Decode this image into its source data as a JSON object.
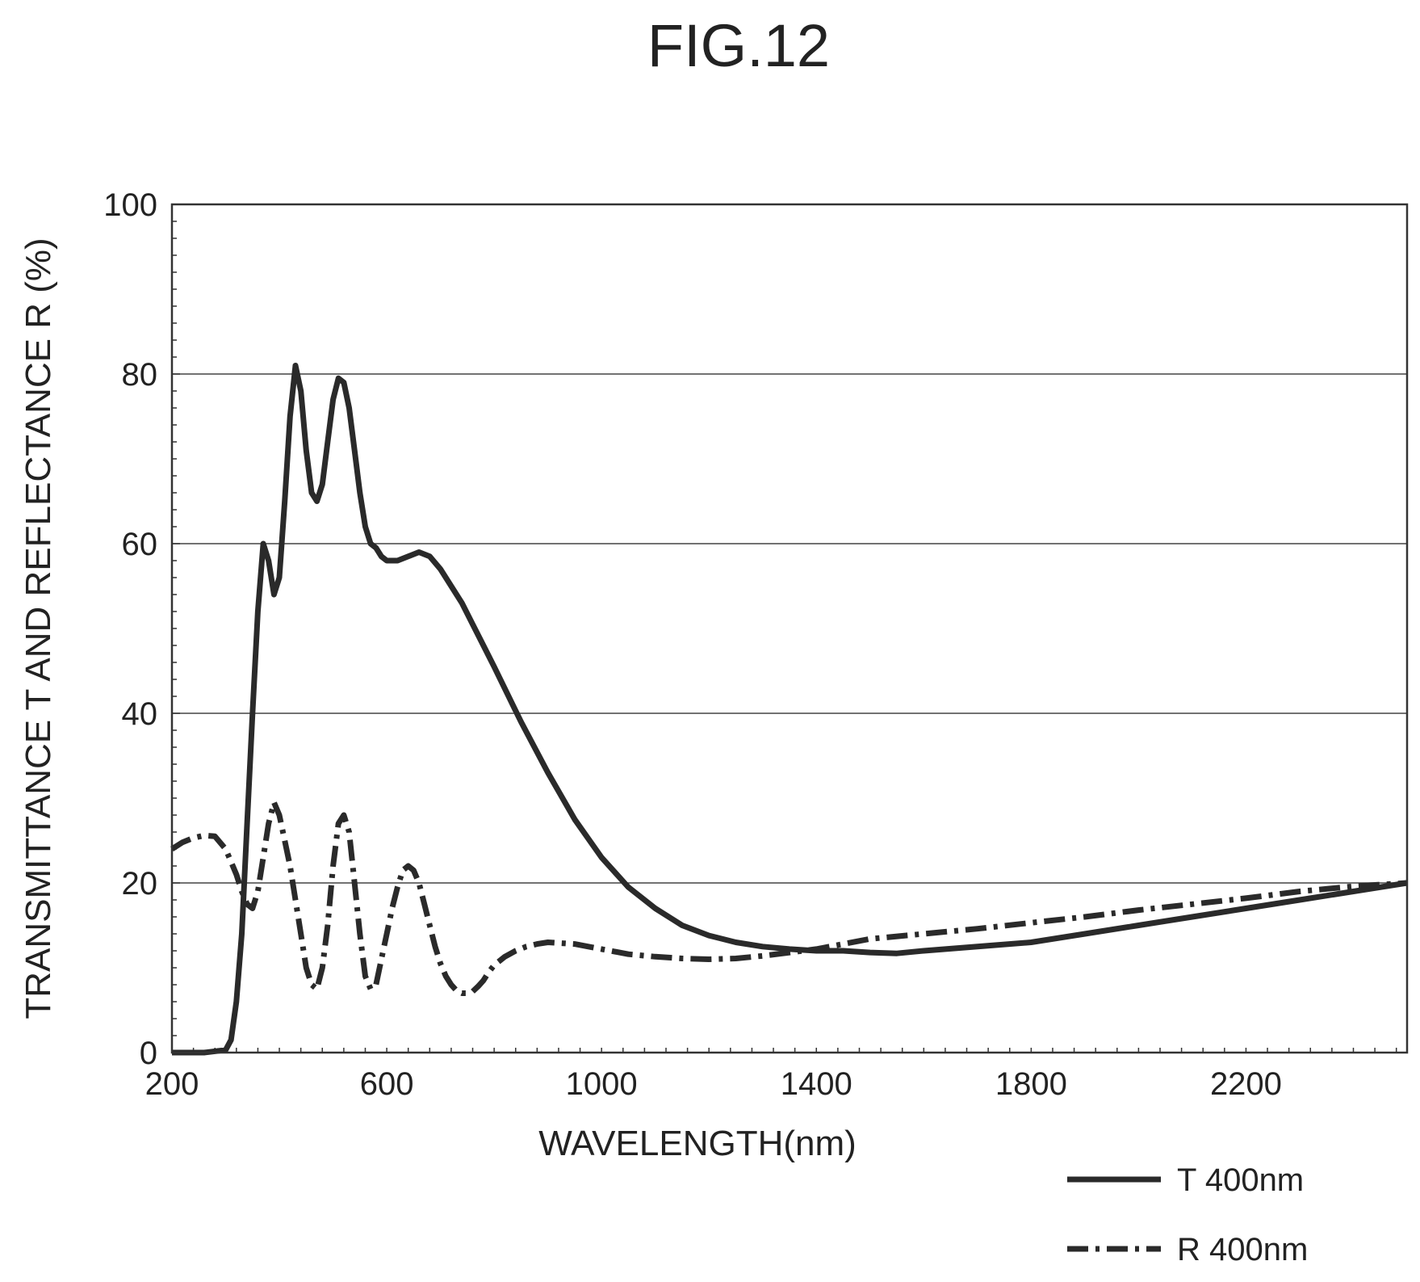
{
  "figure_label": "FIG.12",
  "chart_data": {
    "type": "line",
    "title": "",
    "xlabel": "WAVELENGTH(nm)",
    "ylabel": "TRANSMITTANCE T AND REFLECTANCE R (%)",
    "xlim": [
      200,
      2500
    ],
    "ylim": [
      0,
      100
    ],
    "xticks": [
      200,
      600,
      1000,
      1400,
      1800,
      2200
    ],
    "yticks": [
      0,
      20,
      40,
      60,
      80,
      100
    ],
    "grid": "horizontal",
    "legend_position": "below-right",
    "series": [
      {
        "name": "T 400nm",
        "style": "solid",
        "color": "#2a2a2a",
        "x": [
          200,
          260,
          300,
          310,
          320,
          330,
          340,
          350,
          360,
          370,
          380,
          390,
          400,
          410,
          420,
          430,
          440,
          450,
          460,
          470,
          480,
          490,
          500,
          510,
          520,
          530,
          540,
          550,
          560,
          570,
          580,
          590,
          600,
          620,
          640,
          660,
          680,
          700,
          720,
          740,
          760,
          780,
          800,
          850,
          900,
          950,
          1000,
          1050,
          1100,
          1150,
          1200,
          1250,
          1300,
          1350,
          1400,
          1450,
          1500,
          1550,
          1600,
          1700,
          1800,
          1900,
          2000,
          2100,
          2200,
          2300,
          2400,
          2500
        ],
        "y": [
          0,
          0,
          0.3,
          1.5,
          6,
          14,
          27,
          40,
          52,
          60,
          58,
          54,
          56,
          65,
          75,
          81,
          78,
          71,
          66,
          65,
          67,
          72,
          77,
          79.5,
          79,
          76,
          71,
          66,
          62,
          60,
          59.5,
          58.5,
          58,
          58,
          58.5,
          59,
          58.5,
          57,
          55,
          53,
          50.5,
          48,
          45.5,
          39,
          33,
          27.5,
          23,
          19.5,
          17,
          15,
          13.8,
          13,
          12.5,
          12.2,
          12,
          12,
          11.8,
          11.7,
          12,
          12.5,
          13,
          14,
          15,
          16,
          17,
          18,
          19,
          20
        ]
      },
      {
        "name": "R 400nm",
        "style": "dash-dot",
        "color": "#2a2a2a",
        "x": [
          200,
          220,
          240,
          260,
          280,
          300,
          310,
          320,
          330,
          340,
          350,
          360,
          370,
          380,
          390,
          400,
          410,
          420,
          430,
          440,
          450,
          460,
          470,
          480,
          490,
          500,
          510,
          520,
          530,
          540,
          550,
          560,
          570,
          580,
          590,
          600,
          610,
          620,
          630,
          640,
          650,
          660,
          670,
          680,
          690,
          700,
          710,
          720,
          730,
          740,
          750,
          760,
          770,
          780,
          790,
          800,
          820,
          840,
          860,
          880,
          900,
          950,
          1000,
          1050,
          1100,
          1150,
          1200,
          1250,
          1300,
          1350,
          1400,
          1450,
          1500,
          1600,
          1700,
          1800,
          1900,
          2000,
          2100,
          2200,
          2300,
          2400,
          2500
        ],
        "y": [
          24,
          24.8,
          25.3,
          25.6,
          25.5,
          24,
          22.5,
          21,
          19,
          17.5,
          17,
          19,
          23,
          27,
          29.5,
          28,
          25,
          22,
          18,
          14,
          10,
          8,
          7.5,
          10,
          15,
          22,
          27,
          28,
          26,
          20,
          14,
          9,
          7.5,
          8,
          11,
          14,
          17,
          19.5,
          21.5,
          22,
          21.5,
          20,
          17.5,
          15,
          12.5,
          10.5,
          9,
          8,
          7.3,
          7,
          7,
          7.2,
          7.8,
          8.5,
          9.5,
          10.3,
          11.3,
          12,
          12.5,
          12.8,
          13,
          12.8,
          12.2,
          11.6,
          11.3,
          11.1,
          11,
          11.1,
          11.4,
          11.8,
          12.2,
          12.8,
          13.4,
          14,
          14.6,
          15.3,
          16,
          16.8,
          17.5,
          18.2,
          19,
          19.6,
          20
        ]
      }
    ]
  }
}
